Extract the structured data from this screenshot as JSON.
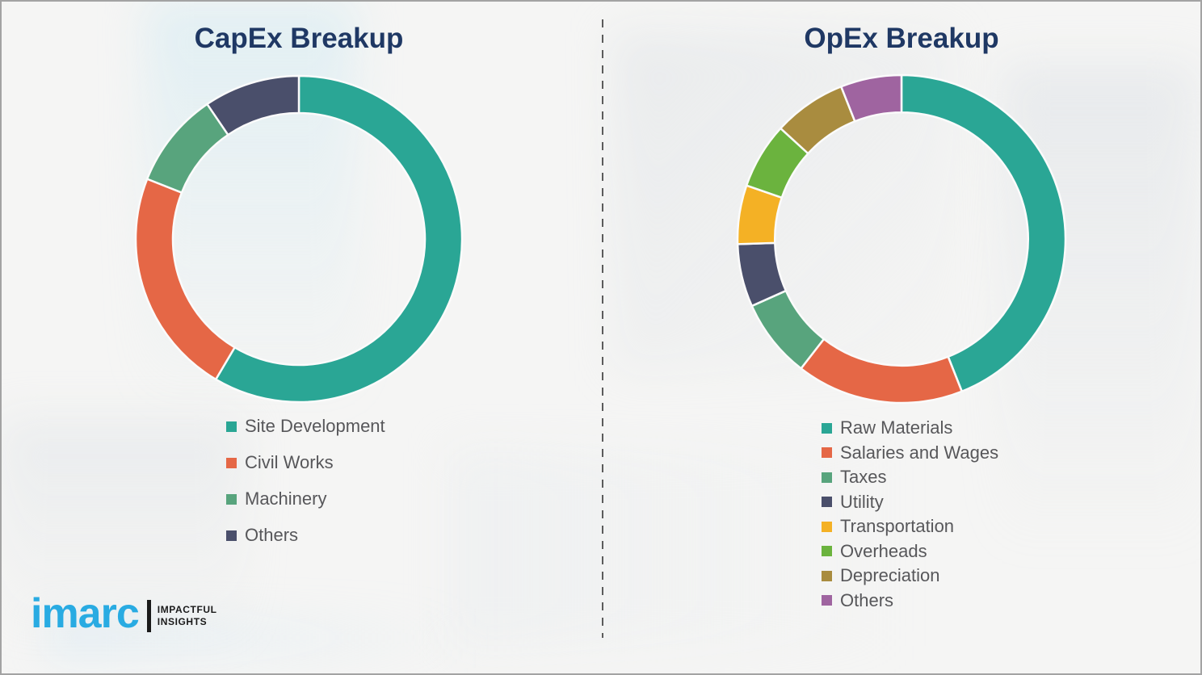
{
  "chart_data": [
    {
      "type": "pie",
      "subtype": "donut",
      "title": "CapEx Breakup",
      "labels": [
        "Site Development",
        "Civil Works",
        "Machinery",
        "Others"
      ],
      "values": [
        58.5,
        22.5,
        9.5,
        9.5
      ],
      "colors": [
        "#2aa695",
        "#e56746",
        "#58a47d",
        "#4a4f6b"
      ],
      "legend_position": "below-left",
      "start_angle_deg": 0,
      "direction": "clockwise"
    },
    {
      "type": "pie",
      "subtype": "donut",
      "title": "OpEx Breakup",
      "labels": [
        "Raw Materials",
        "Salaries and Wages",
        "Taxes",
        "Utility",
        "Transportation",
        "Overheads",
        "Depreciation",
        "Others"
      ],
      "values": [
        44,
        16.5,
        7.8,
        6.2,
        5.8,
        6.5,
        7.2,
        6
      ],
      "colors": [
        "#2aa695",
        "#e56746",
        "#58a47d",
        "#4a4f6b",
        "#f4b125",
        "#6bb33e",
        "#a98c3f",
        "#9f64a0"
      ],
      "legend_position": "below-left",
      "start_angle_deg": 0,
      "direction": "clockwise"
    }
  ],
  "branding": {
    "logo_text": "imarc",
    "tagline_line1": "IMPACTFUL",
    "tagline_line2": "INSIGHTS",
    "logo_color": "#29abe2"
  },
  "style": {
    "title_color": "#1f3864",
    "legend_text_color": "#57575a",
    "divider_color": "#5b5b5b"
  }
}
